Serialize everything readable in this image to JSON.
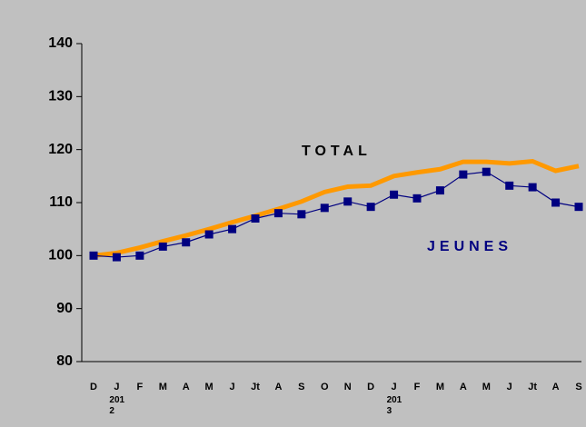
{
  "chart_data": {
    "type": "line",
    "categories": [
      "D",
      "J",
      "F",
      "M",
      "A",
      "M",
      "J",
      "Jt",
      "A",
      "S",
      "O",
      "N",
      "D",
      "J",
      "F",
      "M",
      "A",
      "M",
      "J",
      "Jt",
      "A",
      "S"
    ],
    "category_years": [
      null,
      "2012",
      null,
      null,
      null,
      null,
      null,
      null,
      null,
      null,
      null,
      null,
      null,
      "2013",
      null,
      null,
      null,
      null,
      null,
      null,
      null,
      null
    ],
    "series": [
      {
        "name": "TOTAL",
        "color": "#ff9900",
        "values": [
          100,
          100.5,
          101.5,
          102.7,
          103.8,
          105,
          106.3,
          107.5,
          108.8,
          110.2,
          112,
          113,
          113.2,
          115,
          115.7,
          116.3,
          117.7,
          117.7,
          117.4,
          117.8,
          116,
          116.9
        ]
      },
      {
        "name": "JEUNES",
        "color": "#000080",
        "values": [
          100,
          99.7,
          100,
          101.7,
          102.5,
          104,
          105,
          107,
          108,
          107.8,
          109,
          110.2,
          109.2,
          111.5,
          110.8,
          112.3,
          115.3,
          115.8,
          113.2,
          112.9,
          110,
          109.2
        ]
      }
    ],
    "ylim": [
      80,
      140
    ],
    "yticks": [
      80,
      90,
      100,
      110,
      120,
      130,
      140
    ]
  }
}
